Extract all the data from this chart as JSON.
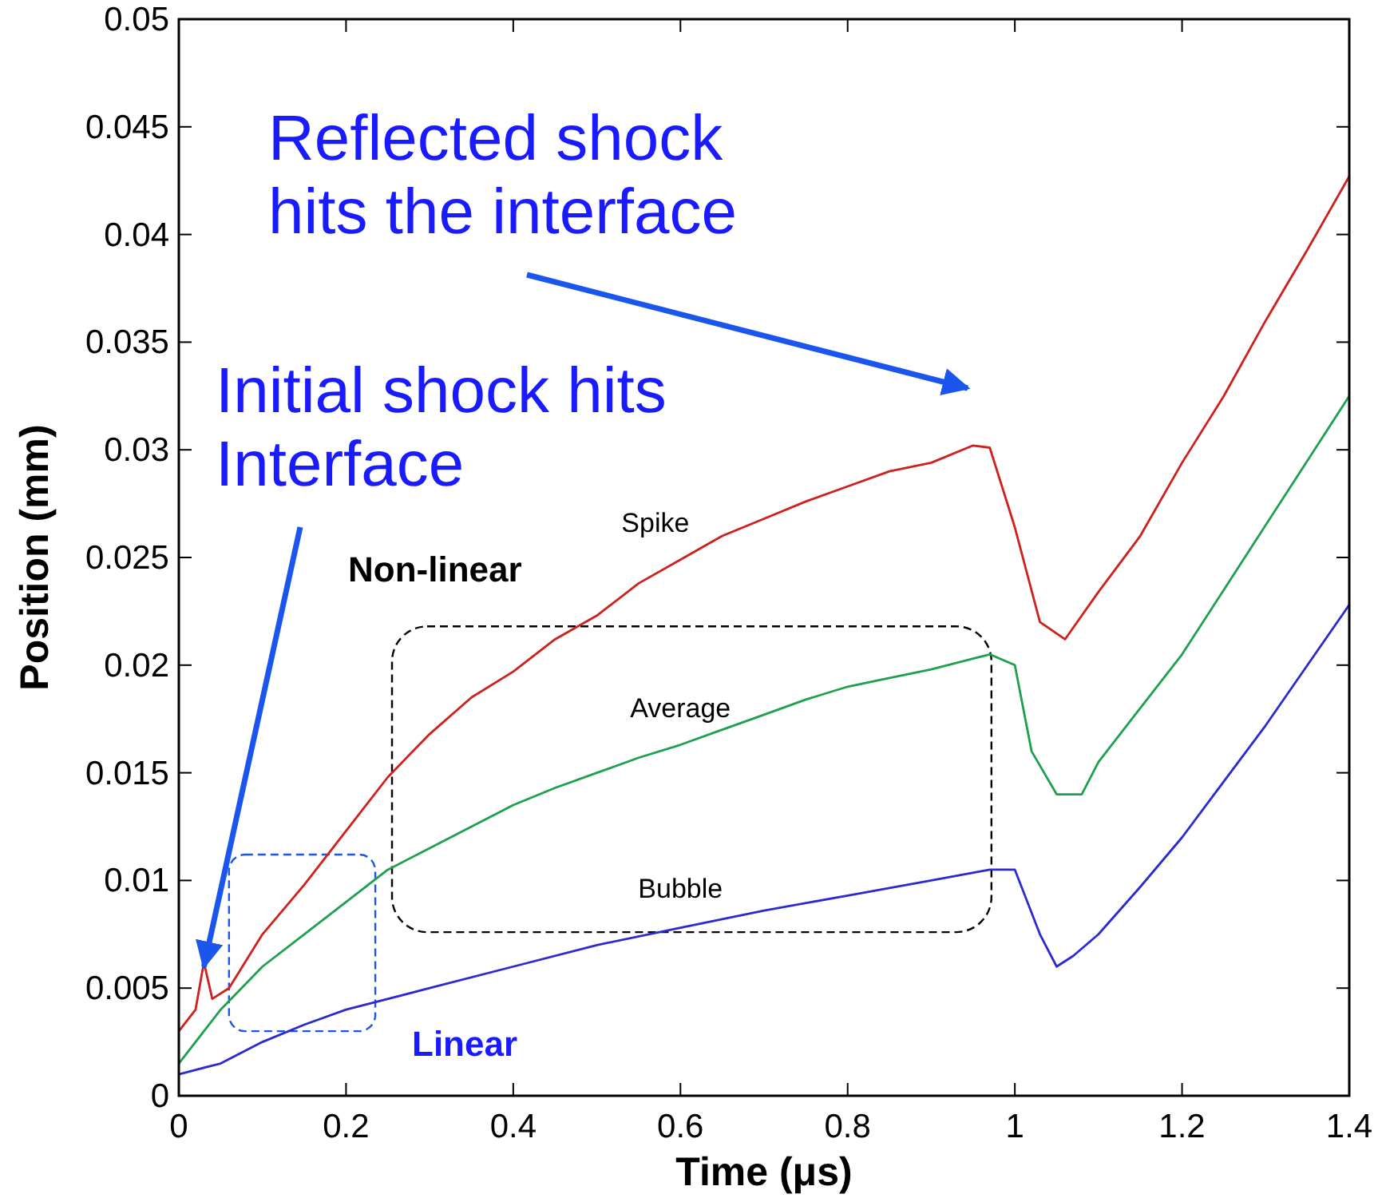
{
  "chart_data": {
    "type": "line",
    "xlabel": "Time (μs)",
    "ylabel": "Position (mm)",
    "xlim": [
      0,
      1.4
    ],
    "ylim": [
      0,
      0.05
    ],
    "xticks": [
      0,
      0.2,
      0.4,
      0.6,
      0.8,
      1,
      1.2,
      1.4
    ],
    "yticks": [
      0,
      0.005,
      0.01,
      0.015,
      0.02,
      0.025,
      0.03,
      0.035,
      0.04,
      0.045,
      0.05
    ],
    "grid": false,
    "marker": "none",
    "line_style": "solid",
    "series": [
      {
        "name": "Spike",
        "color": "#d0201c",
        "x": [
          0,
          0.02,
          0.03,
          0.04,
          0.06,
          0.1,
          0.15,
          0.2,
          0.25,
          0.3,
          0.35,
          0.4,
          0.45,
          0.5,
          0.55,
          0.6,
          0.65,
          0.7,
          0.75,
          0.8,
          0.85,
          0.9,
          0.95,
          0.97,
          1.0,
          1.03,
          1.06,
          1.1,
          1.15,
          1.2,
          1.25,
          1.3,
          1.35,
          1.4
        ],
        "values": [
          0.003,
          0.004,
          0.0062,
          0.0045,
          0.005,
          0.0075,
          0.0098,
          0.0123,
          0.0148,
          0.0168,
          0.0185,
          0.0197,
          0.0212,
          0.0223,
          0.0238,
          0.0249,
          0.026,
          0.0268,
          0.0276,
          0.0283,
          0.029,
          0.0294,
          0.0302,
          0.0301,
          0.0264,
          0.022,
          0.0212,
          0.0234,
          0.026,
          0.0294,
          0.0325,
          0.036,
          0.0393,
          0.0427
        ]
      },
      {
        "name": "Average",
        "color": "#1ea050",
        "x": [
          0,
          0.05,
          0.1,
          0.15,
          0.2,
          0.25,
          0.3,
          0.35,
          0.4,
          0.45,
          0.5,
          0.55,
          0.6,
          0.65,
          0.7,
          0.75,
          0.8,
          0.85,
          0.9,
          0.95,
          0.97,
          1.0,
          1.02,
          1.05,
          1.08,
          1.1,
          1.15,
          1.2,
          1.25,
          1.3,
          1.35,
          1.4
        ],
        "values": [
          0.0015,
          0.004,
          0.006,
          0.0075,
          0.009,
          0.0105,
          0.0115,
          0.0125,
          0.0135,
          0.0143,
          0.015,
          0.0157,
          0.0163,
          0.017,
          0.0177,
          0.0184,
          0.019,
          0.0194,
          0.0198,
          0.0203,
          0.0205,
          0.02,
          0.016,
          0.014,
          0.014,
          0.0155,
          0.018,
          0.0205,
          0.0235,
          0.0265,
          0.0295,
          0.0325
        ]
      },
      {
        "name": "Bubble",
        "color": "#2a2ad0",
        "x": [
          0,
          0.05,
          0.1,
          0.15,
          0.2,
          0.3,
          0.4,
          0.5,
          0.6,
          0.7,
          0.8,
          0.9,
          0.97,
          1.0,
          1.03,
          1.05,
          1.07,
          1.1,
          1.15,
          1.2,
          1.25,
          1.3,
          1.35,
          1.4
        ],
        "values": [
          0.001,
          0.0015,
          0.0025,
          0.0033,
          0.004,
          0.005,
          0.006,
          0.007,
          0.0078,
          0.0086,
          0.0093,
          0.01,
          0.0105,
          0.0105,
          0.0075,
          0.006,
          0.0065,
          0.0075,
          0.0097,
          0.012,
          0.0146,
          0.0172,
          0.02,
          0.0228
        ]
      }
    ],
    "annotations": [
      "Reflected shock\nhits the interface",
      {
        "text": "Initial shock hits\nInterface",
        "x": 0.03,
        "y": 0.006
      },
      "Non-linear",
      "Linear"
    ]
  }
}
